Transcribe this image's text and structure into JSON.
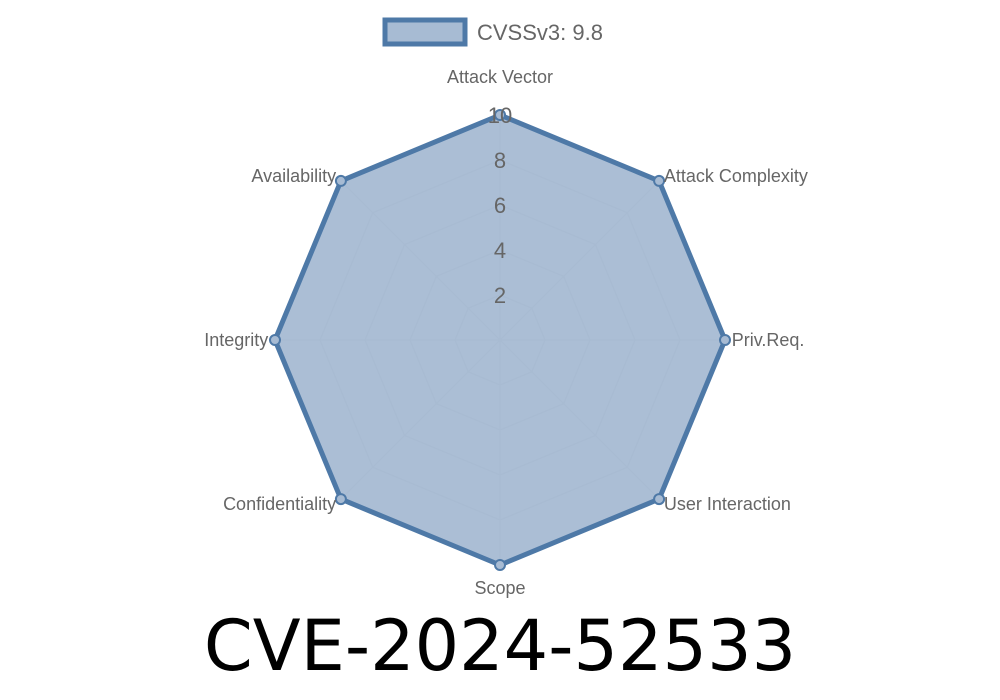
{
  "chart_data": {
    "type": "radar",
    "title": "CVE-2024-52533",
    "legend": {
      "placement": "top",
      "entries": [
        "CVSSv3: 9.8"
      ]
    },
    "axes": [
      "Attack Vector",
      "Attack Complexity",
      "Priv.Req.",
      "User Interaction",
      "Scope",
      "Confidentiality",
      "Integrity",
      "Availability"
    ],
    "rlim": [
      0,
      10
    ],
    "ticks": [
      "2",
      "4",
      "6",
      "8",
      "10"
    ],
    "grid": true,
    "series": [
      {
        "name": "CVSSv3: 9.8",
        "values": [
          10,
          10,
          10,
          10,
          10,
          10,
          10,
          10
        ]
      }
    ],
    "colors": {
      "line": "#4e79a7",
      "fill": "#a7bbd3",
      "grid": "#c8c8c8",
      "text": "#666666"
    }
  }
}
